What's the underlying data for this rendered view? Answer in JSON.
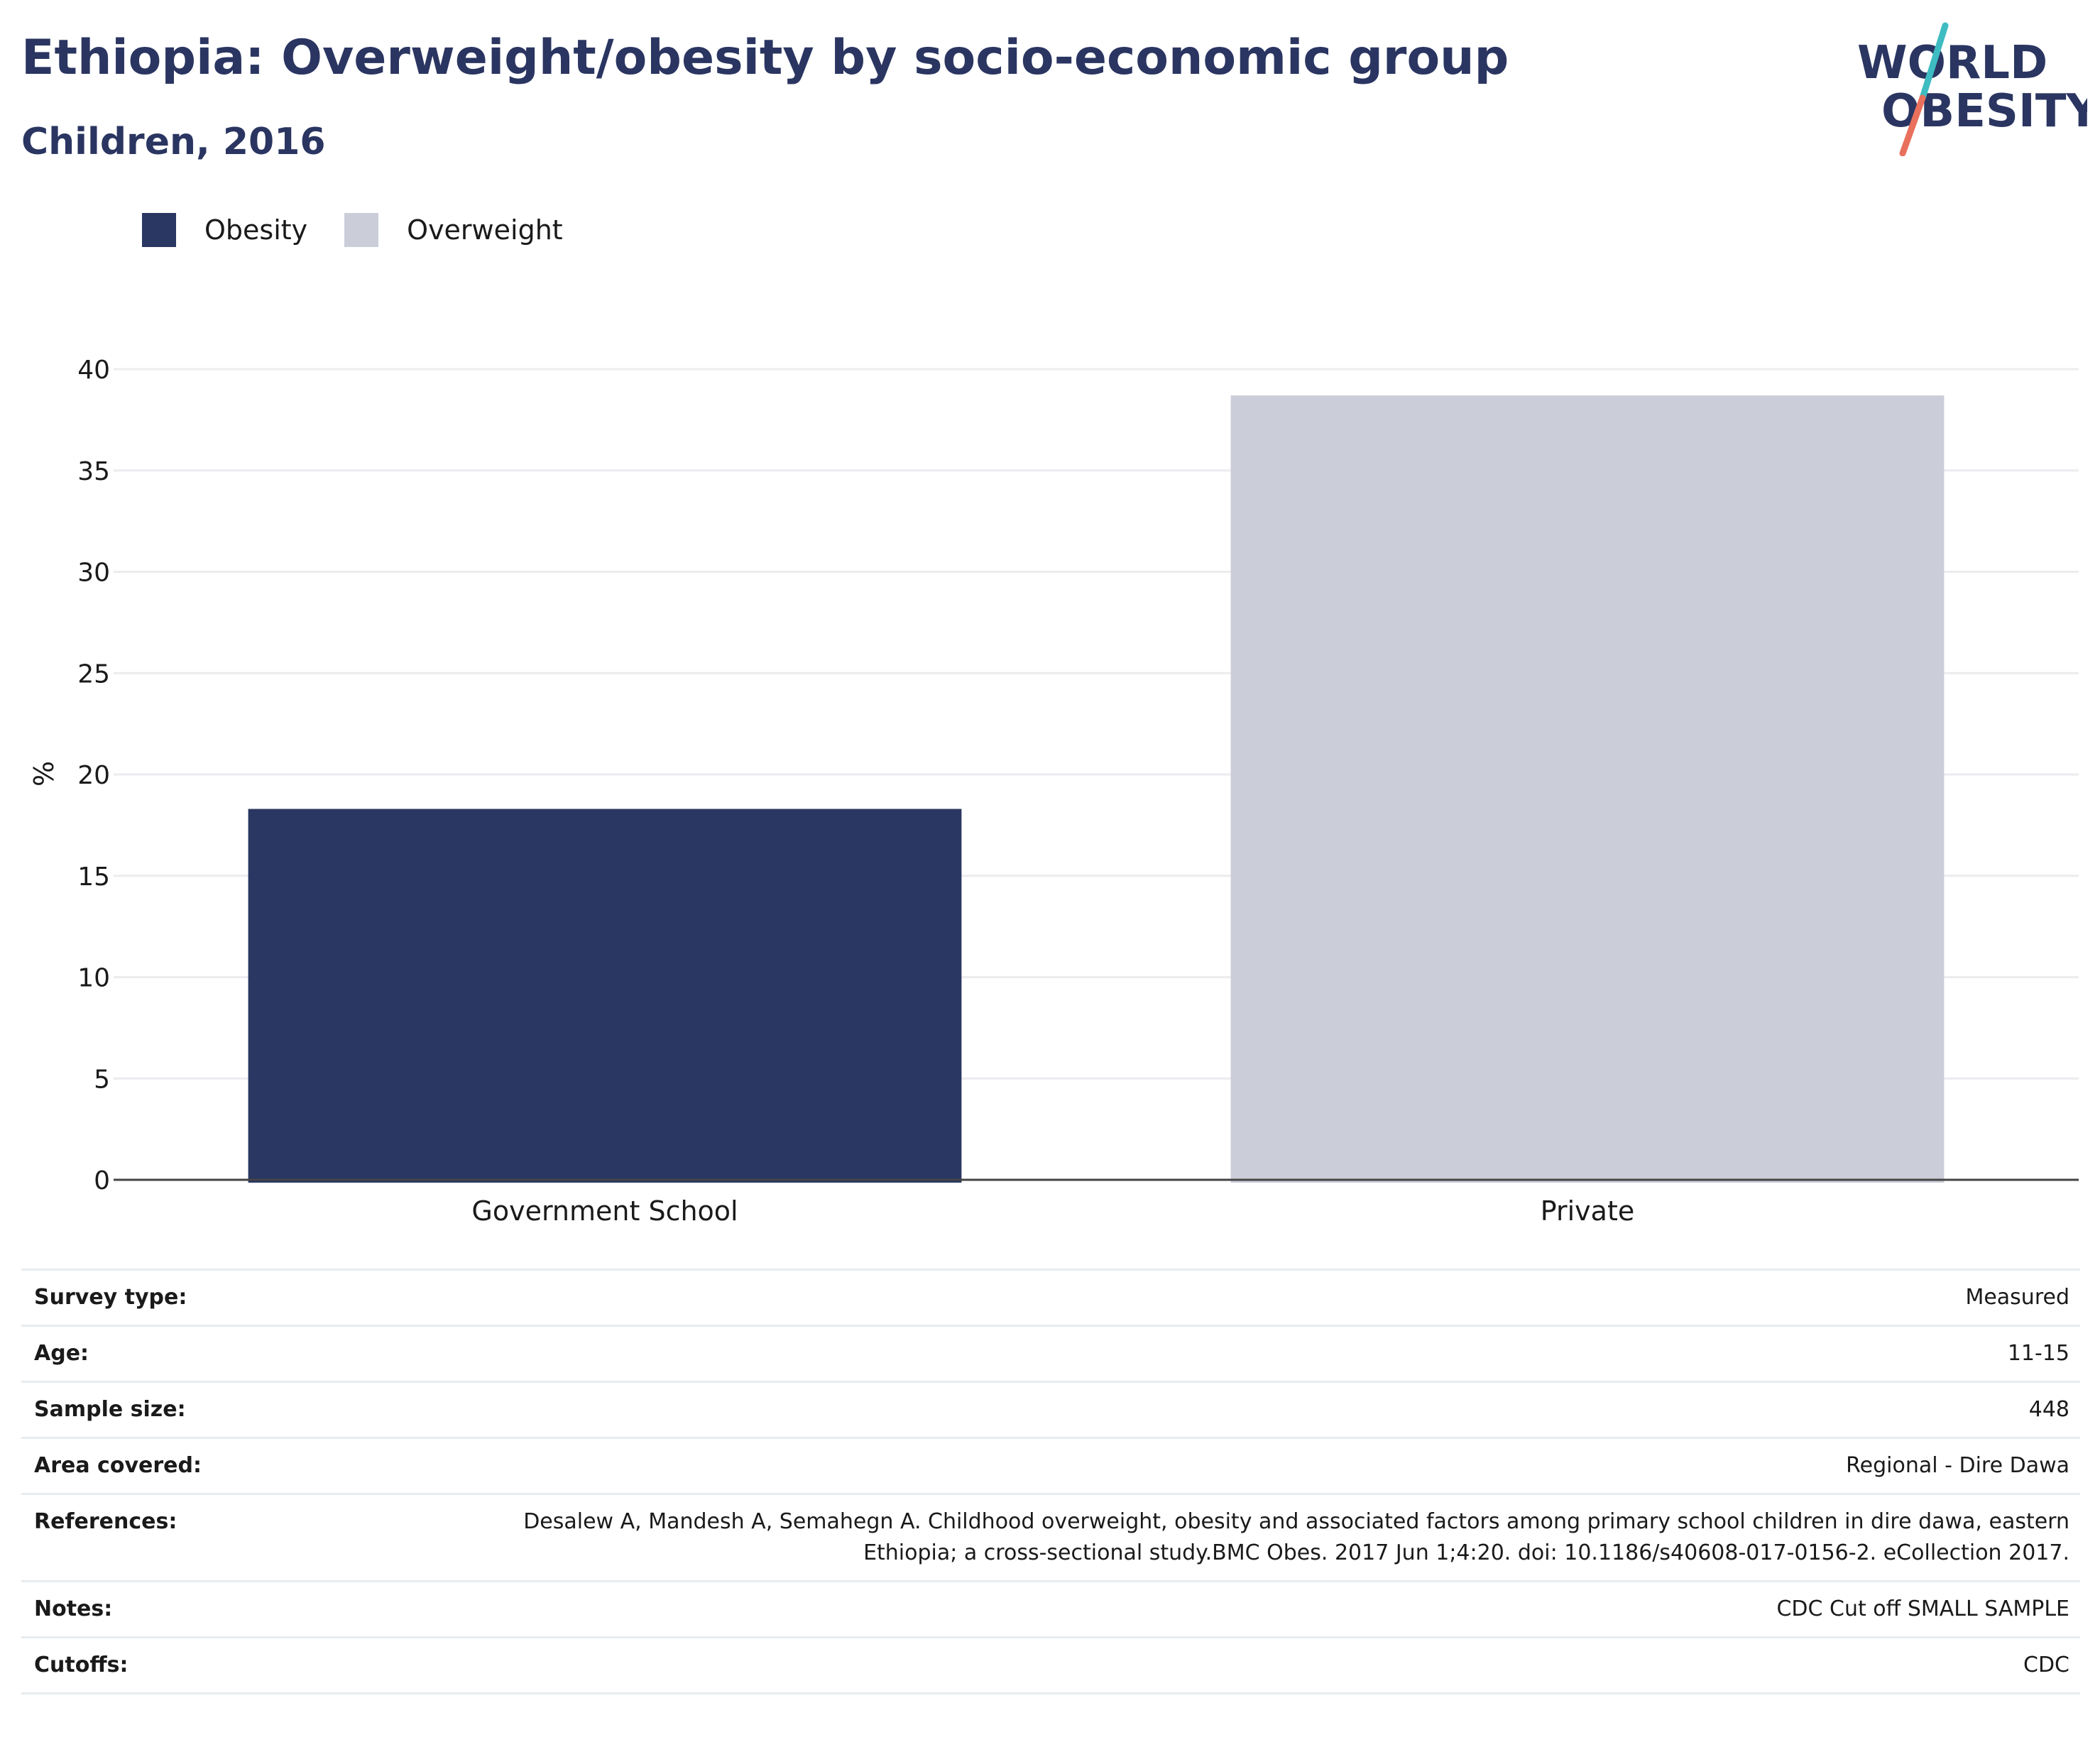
{
  "header": {
    "title": "Ethiopia: Overweight/obesity by socio-economic group",
    "subtitle": "Children, 2016"
  },
  "logo": {
    "line1": "WORLD",
    "line2": "OBESITY",
    "colors": {
      "text": "#2a3561",
      "slash_top": "#3fbcc1",
      "slash_bottom": "#e8705c"
    }
  },
  "legend": [
    {
      "label": "Obesity",
      "color": "#2a3762"
    },
    {
      "label": "Overweight",
      "color": "#cbcdd8"
    }
  ],
  "chart_data": {
    "type": "bar",
    "categories": [
      "Government School",
      "Private"
    ],
    "series": [
      {
        "name": "Obesity",
        "values": [
          18.3,
          null
        ],
        "color": "#2a3762"
      },
      {
        "name": "Overweight",
        "values": [
          null,
          38.7
        ],
        "color": "#cbcdd8"
      }
    ],
    "ylabel": "%",
    "ylim": [
      0,
      40
    ],
    "yticks": [
      "0",
      "5",
      "10",
      "15",
      "20",
      "25",
      "30",
      "35",
      "40"
    ],
    "grid": true
  },
  "details": [
    {
      "label": "Survey type:",
      "value": "Measured"
    },
    {
      "label": "Age:",
      "value": "11-15"
    },
    {
      "label": "Sample size:",
      "value": "448"
    },
    {
      "label": "Area covered:",
      "value": "Regional - Dire Dawa"
    },
    {
      "label": "References:",
      "value": "Desalew A, Mandesh A, Semahegn A. Childhood overweight, obesity and associated factors among primary school children in dire dawa, eastern Ethiopia; a cross-sectional study.BMC Obes. 2017 Jun 1;4:20. doi: 10.1186/s40608-017-0156-2. eCollection 2017."
    },
    {
      "label": "Notes:",
      "value": "CDC Cut off SMALL SAMPLE"
    },
    {
      "label": "Cutoffs:",
      "value": "CDC"
    }
  ]
}
